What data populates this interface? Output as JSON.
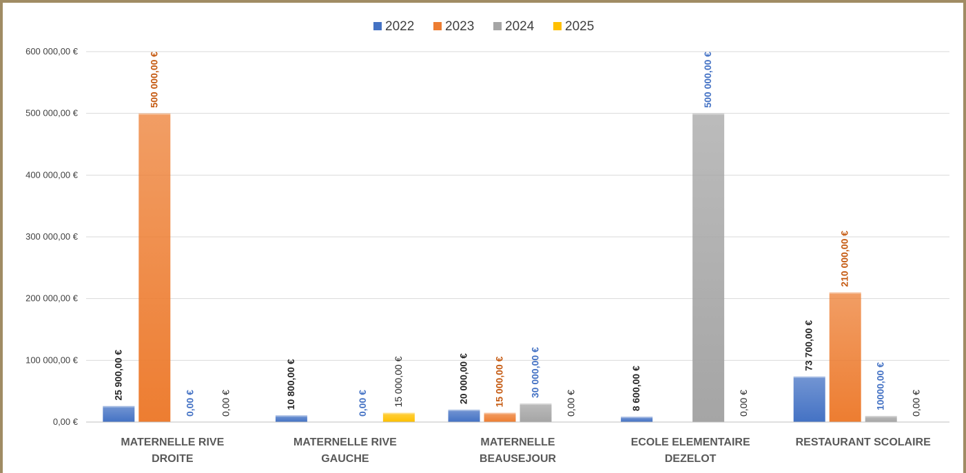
{
  "chart_data": {
    "type": "bar",
    "categories": [
      [
        "MATERNELLE RIVE",
        "DROITE"
      ],
      [
        "MATERNELLE RIVE",
        "GAUCHE"
      ],
      [
        "MATERNELLE",
        "BEAUSEJOUR"
      ],
      [
        "ECOLE ELEMENTAIRE",
        "DEZELOT"
      ],
      [
        "RESTAURANT SCOLAIRE"
      ]
    ],
    "series": [
      {
        "name": "2022",
        "color": "#4472c4",
        "values": [
          25900,
          10800,
          20000,
          8600,
          73700
        ],
        "labels": [
          "25 900,00 €",
          "10 800,00 €",
          "20 000,00 €",
          "8 600,00 €",
          "73 700,00 €"
        ],
        "label_colors": [
          "#262626",
          "#262626",
          "#262626",
          "#262626",
          "#262626"
        ],
        "label_bold": [
          true,
          true,
          true,
          true,
          true
        ]
      },
      {
        "name": "2023",
        "color": "#ed7d31",
        "values": [
          500000,
          0,
          15000,
          0,
          210000
        ],
        "labels": [
          "500 000,00 €",
          "",
          "15 000,00 €",
          "",
          "210 000,00 €"
        ],
        "label_colors": [
          "#c55a11",
          "#c55a11",
          "#c55a11",
          "#c55a11",
          "#c55a11"
        ],
        "label_bold": [
          true,
          true,
          true,
          true,
          true
        ]
      },
      {
        "name": "2024",
        "color": "#a5a5a5",
        "values": [
          0,
          0,
          30000,
          500000,
          10000
        ],
        "labels": [
          "0,00 €",
          "0,00 €",
          "30 000,00 €",
          "500 000,00 €",
          "10000,00 €"
        ],
        "label_colors": [
          "#4472c4",
          "#4472c4",
          "#4472c4",
          "#4472c4",
          "#4472c4"
        ],
        "label_bold": [
          true,
          true,
          true,
          true,
          true
        ]
      },
      {
        "name": "2025",
        "color": "#ffc000",
        "values": [
          0,
          15000,
          0,
          0,
          0
        ],
        "labels": [
          "0,00 €",
          "15 000,00 €",
          "0,00 €",
          "0,00 €",
          "0,00 €"
        ],
        "label_colors": [
          "#262626",
          "#262626",
          "#262626",
          "#262626",
          "#262626"
        ],
        "label_bold": [
          false,
          false,
          false,
          false,
          false
        ]
      }
    ],
    "y_ticks": [
      {
        "value": 0,
        "label": "0,00 €"
      },
      {
        "value": 100000,
        "label": "100 000,00 €"
      },
      {
        "value": 200000,
        "label": "200 000,00 €"
      },
      {
        "value": 300000,
        "label": "300 000,00 €"
      },
      {
        "value": 400000,
        "label": "400 000,00 €"
      },
      {
        "value": 500000,
        "label": "500 000,00 €"
      },
      {
        "value": 600000,
        "label": "600 000,00 €"
      }
    ],
    "ylim": [
      0,
      600000
    ],
    "grid": true,
    "legend_position": "top-center"
  }
}
